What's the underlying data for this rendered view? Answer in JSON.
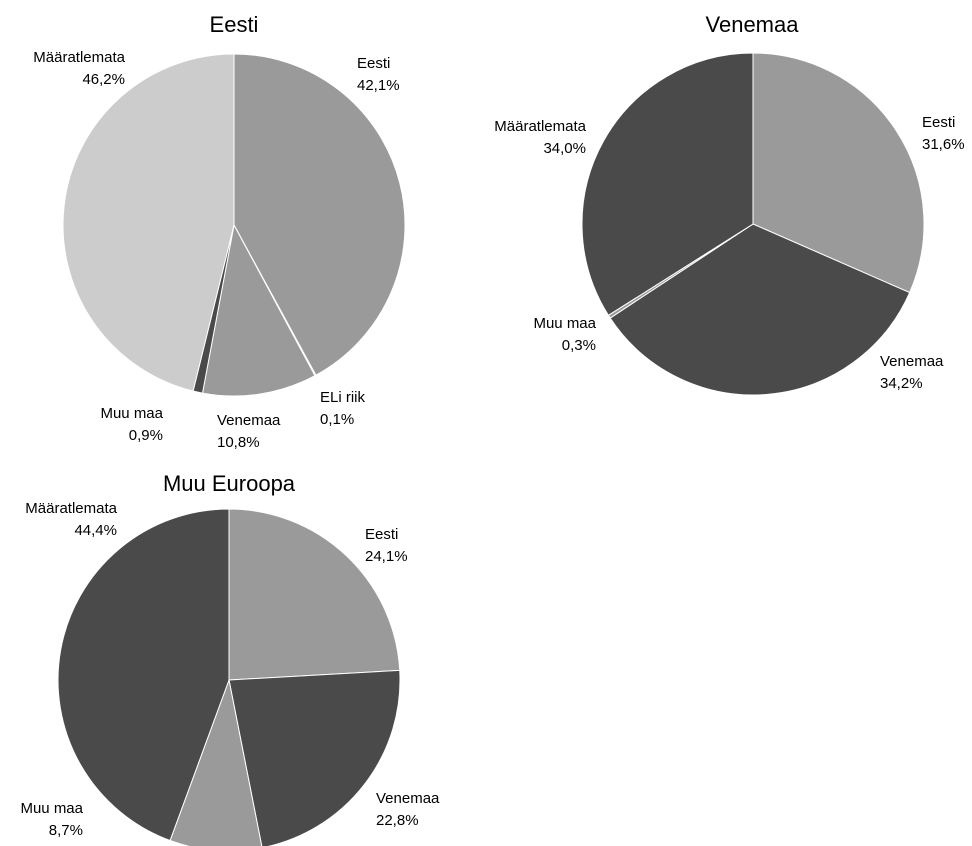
{
  "chart_data": [
    {
      "type": "pie",
      "title": "Eesti",
      "slices": [
        {
          "label": "Eesti",
          "value": 42.1,
          "value_label": "42,1%",
          "color": "#9a9a9a"
        },
        {
          "label": "ELi riik",
          "value": 0.1,
          "value_label": "0,1%",
          "color": "#4a4a4a"
        },
        {
          "label": "Venemaa",
          "value": 10.8,
          "value_label": "10,8%",
          "color": "#9a9a9a"
        },
        {
          "label": "Muu maa",
          "value": 0.9,
          "value_label": "0,9%",
          "color": "#4a4a4a"
        },
        {
          "label": "Määratlemata",
          "value": 46.2,
          "value_label": "46,2%",
          "color": "#cccccc"
        }
      ]
    },
    {
      "type": "pie",
      "title": "Venemaa",
      "slices": [
        {
          "label": "Eesti",
          "value": 31.6,
          "value_label": "31,6%",
          "color": "#9a9a9a"
        },
        {
          "label": "Venemaa",
          "value": 34.2,
          "value_label": "34,2%",
          "color": "#4a4a4a"
        },
        {
          "label": "Muu maa",
          "value": 0.3,
          "value_label": "0,3%",
          "color": "#9a9a9a"
        },
        {
          "label": "Määratlemata",
          "value": 34.0,
          "value_label": "34,0%",
          "color": "#4a4a4a"
        }
      ]
    },
    {
      "type": "pie",
      "title": "Muu Euroopa",
      "slices": [
        {
          "label": "Eesti",
          "value": 24.1,
          "value_label": "24,1%",
          "color": "#9a9a9a"
        },
        {
          "label": "Venemaa",
          "value": 22.8,
          "value_label": "22,8%",
          "color": "#4a4a4a"
        },
        {
          "label": "Muu maa",
          "value": 8.7,
          "value_label": "8,7%",
          "color": "#9a9a9a"
        },
        {
          "label": "Määratlemata",
          "value": 44.4,
          "value_label": "44,4%",
          "color": "#4a4a4a"
        }
      ]
    }
  ]
}
